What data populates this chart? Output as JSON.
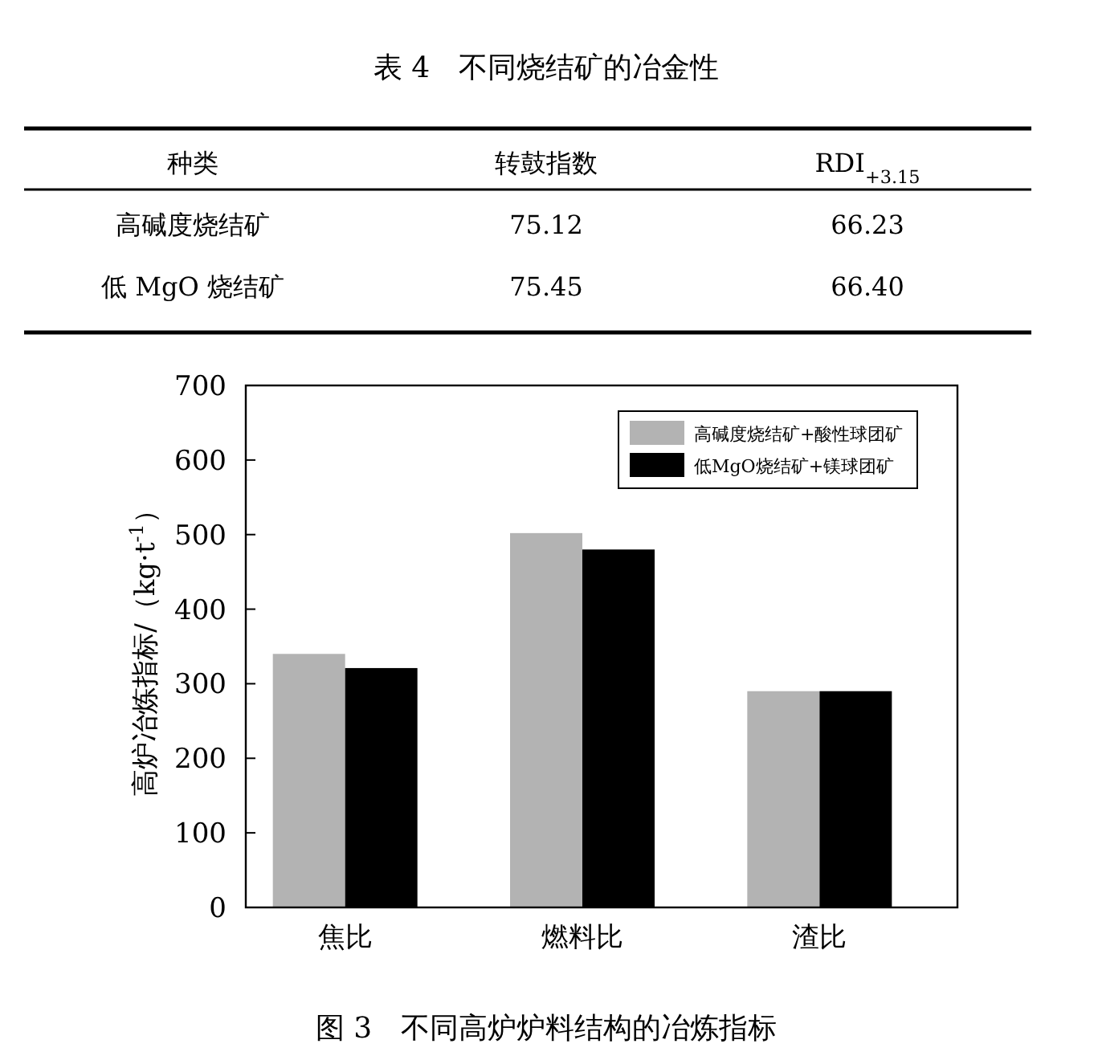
{
  "chart_data": [
    {
      "type": "other",
      "title": "表 4　不同烧结矿的冶金性",
      "annotations": [
        "种类",
        "转鼓指数",
        "RDI$_{+3.15}$",
        "高碱度烧结矿",
        "75.12",
        "66.23",
        "低 MgO 烧结矿",
        "75.45",
        "66.40"
      ]
    },
    {
      "type": "bar",
      "title": "图 3　不同高炉炉料结构的冶炼指标",
      "ylabel": "高炉冶炼指标/（kg·t$^{-1}$）",
      "categories": [
        "焦比",
        "燃料比",
        "渣比"
      ],
      "series": [
        {
          "name": "高碱度烧结矿+酸性球团矿",
          "color": "#b3b3b3",
          "values": [
            340,
            502,
            290
          ]
        },
        {
          "name": "低MgO烧结矿+镁球团矿",
          "color": "#000000",
          "values": [
            321,
            480,
            290
          ]
        }
      ],
      "ylim": [
        0,
        700
      ],
      "yticks": [
        0,
        100,
        200,
        300,
        400,
        500,
        600,
        700
      ],
      "legend": "top right"
    }
  ]
}
